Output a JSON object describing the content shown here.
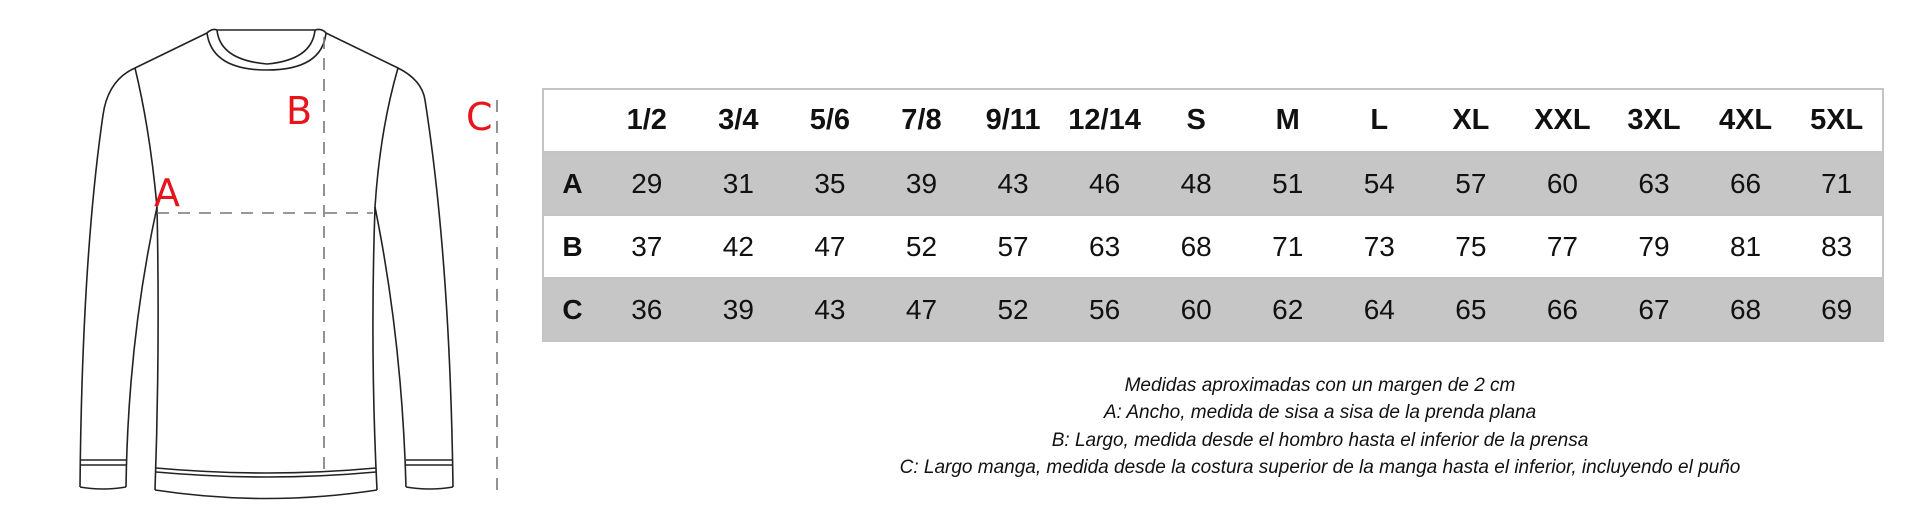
{
  "diagram": {
    "labels": {
      "a": "A",
      "b": "B",
      "c": "C"
    },
    "label_color": "#e8141c"
  },
  "table": {
    "headers": [
      "1/2",
      "3/4",
      "5/6",
      "7/8",
      "9/11",
      "12/14",
      "S",
      "M",
      "L",
      "XL",
      "XXL",
      "3XL",
      "4XL",
      "5XL"
    ],
    "rows": [
      {
        "label": "A",
        "values": [
          "29",
          "31",
          "35",
          "39",
          "43",
          "46",
          "48",
          "51",
          "54",
          "57",
          "60",
          "63",
          "66",
          "71"
        ]
      },
      {
        "label": "B",
        "values": [
          "37",
          "42",
          "47",
          "52",
          "57",
          "63",
          "68",
          "71",
          "73",
          "75",
          "77",
          "79",
          "81",
          "83"
        ]
      },
      {
        "label": "C",
        "values": [
          "36",
          "39",
          "43",
          "47",
          "52",
          "56",
          "60",
          "62",
          "64",
          "65",
          "66",
          "67",
          "68",
          "69"
        ]
      }
    ],
    "shade_color": "#c6c6c6"
  },
  "notes": [
    "Medidas aproximadas con un margen de 2 cm",
    "A: Ancho, medida de sisa a sisa de la prenda plana",
    "B: Largo, medida desde el hombro hasta el inferior de la prensa",
    "C: Largo manga, medida desde la costura superior de la manga hasta el inferior, incluyendo el puño"
  ]
}
